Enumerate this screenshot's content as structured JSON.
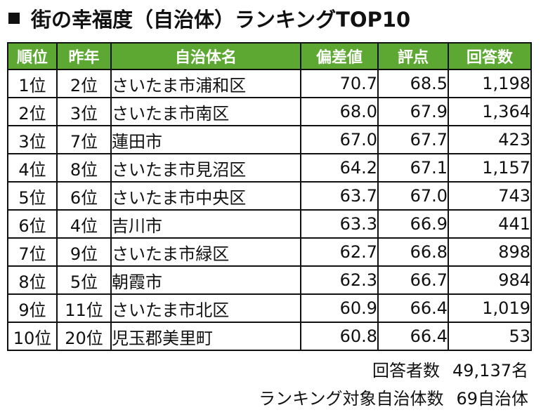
{
  "title": {
    "text": "街の幸福度（自治体）ランキングTOP10"
  },
  "colors": {
    "header_bg": "#5da832",
    "header_text": "#ffffff",
    "border": "#111111"
  },
  "table": {
    "headers": [
      "順位",
      "昨年",
      "自治体名",
      "偏差値",
      "評点",
      "回答数"
    ],
    "rows": [
      [
        "1位",
        "2位",
        "さいたま市浦和区",
        "70.7",
        "68.5",
        "1,198"
      ],
      [
        "2位",
        "3位",
        "さいたま市南区",
        "68.0",
        "67.9",
        "1,364"
      ],
      [
        "3位",
        "7位",
        "蓮田市",
        "67.0",
        "67.7",
        "423"
      ],
      [
        "4位",
        "8位",
        "さいたま市見沼区",
        "64.2",
        "67.1",
        "1,157"
      ],
      [
        "5位",
        "6位",
        "さいたま市中央区",
        "63.7",
        "67.0",
        "743"
      ],
      [
        "6位",
        "4位",
        "吉川市",
        "63.3",
        "66.9",
        "441"
      ],
      [
        "7位",
        "9位",
        "さいたま市緑区",
        "62.7",
        "66.8",
        "898"
      ],
      [
        "8位",
        "5位",
        "朝霞市",
        "62.3",
        "66.7",
        "984"
      ],
      [
        "9位",
        "11位",
        "さいたま市北区",
        "60.9",
        "66.4",
        "1,019"
      ],
      [
        "10位",
        "20位",
        "児玉郡美里町",
        "60.8",
        "66.4",
        "53"
      ]
    ]
  },
  "footer": {
    "respondents_label": "回答者数",
    "respondents_value": "49,137名",
    "municipalities_label": "ランキング対象自治体数",
    "municipalities_value": "69自治体"
  }
}
